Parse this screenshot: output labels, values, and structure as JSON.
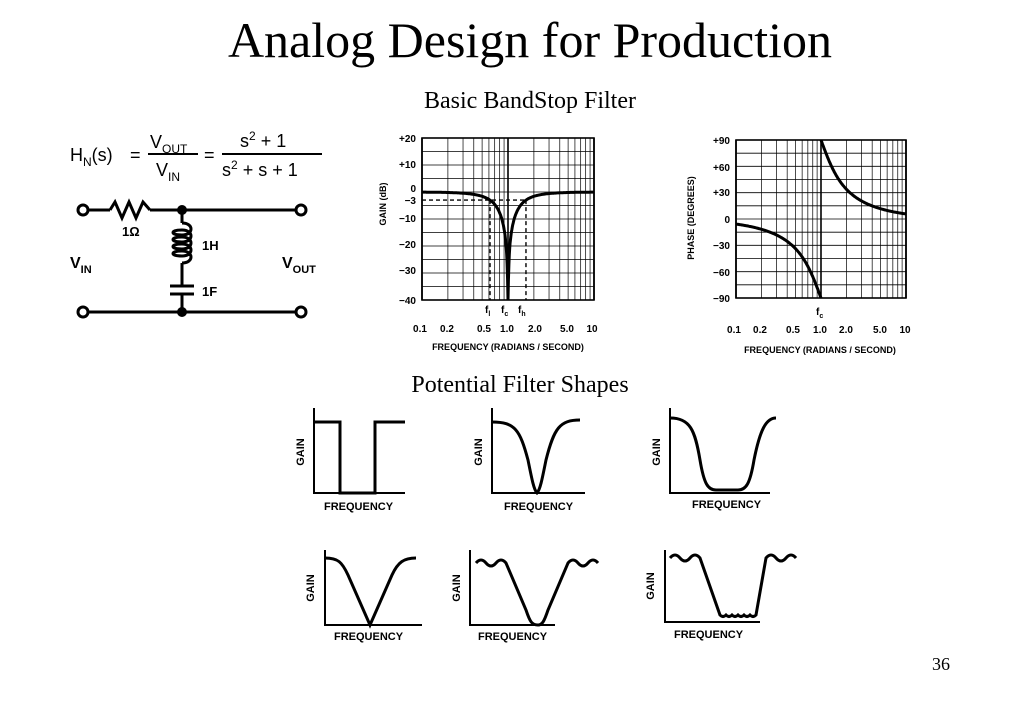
{
  "title": "Analog Design for Production",
  "subtitle_bandstop": "Basic BandStop Filter",
  "subtitle_shapes": "Potential Filter Shapes",
  "page_number": "36",
  "transfer_function": {
    "lhs_main": "H",
    "lhs_sub": "N",
    "lhs_arg": "(s)",
    "equals": "=",
    "vout_main": "V",
    "vout_sub": "OUT",
    "vin_main": "V",
    "vin_sub": "IN",
    "num_s": "s",
    "num_exp": "2",
    "num_rest": " + 1",
    "den_s": "s",
    "den_exp": "2",
    "den_rest": " + s + 1"
  },
  "circuit": {
    "resistor_label": "1Ω",
    "inductor_label": "1H",
    "capacitor_label": "1F",
    "vin_main": "V",
    "vin_sub": "IN",
    "vout_main": "V",
    "vout_sub": "OUT"
  },
  "gain_plot": {
    "ylabel": "GAIN (dB)",
    "xlabel": "FREQUENCY (RADIANS / SECOND)",
    "y_ticks": [
      "+20",
      "+10",
      "0",
      "−3",
      "−10",
      "−20",
      "−30",
      "−40"
    ],
    "x_ticks": [
      "0.1",
      "0.2",
      "0.5",
      "1.0",
      "2.0",
      "5.0",
      "10"
    ],
    "markers": [
      {
        "main": "f",
        "sub": "l"
      },
      {
        "main": "f",
        "sub": "c"
      },
      {
        "main": "f",
        "sub": "h"
      }
    ]
  },
  "phase_plot": {
    "ylabel": "PHASE (DEGREES)",
    "xlabel": "FREQUENCY  (RADIANS / SECOND)",
    "y_ticks": [
      "+90",
      "+60",
      "+30",
      "0",
      "−30",
      "−60",
      "−90"
    ],
    "x_ticks": [
      "0.1",
      "0.2",
      "0.5",
      "1.0",
      "2.0",
      "5.0",
      "10"
    ],
    "marker": {
      "main": "f",
      "sub": "c"
    }
  },
  "shapes": {
    "gain_label": "GAIN",
    "frequency_label": "FREQUENCY"
  }
}
